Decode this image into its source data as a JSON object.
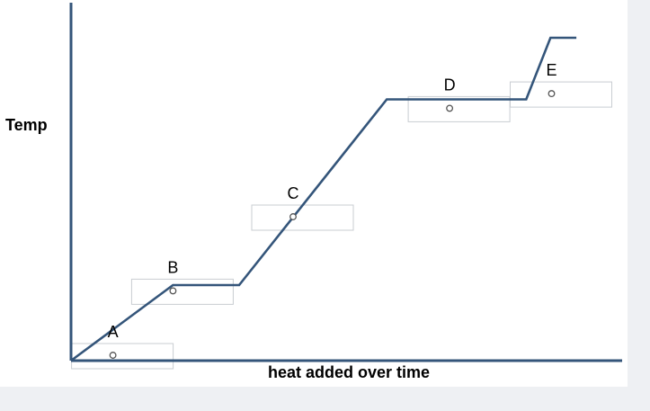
{
  "chart_data": {
    "type": "line",
    "title": "",
    "xlabel": "heat added over time",
    "ylabel": "Temp",
    "xlim": [
      0,
      100
    ],
    "ylim": [
      0,
      100
    ],
    "grid": false,
    "series": [
      {
        "values_x": [
          0,
          18.5,
          30.5,
          57.3,
          82.6,
          87,
          91.7
        ],
        "values_y": [
          0,
          21.1,
          21.1,
          73.0,
          73.0,
          90.2,
          90.2
        ]
      }
    ],
    "line_color": "#34557a",
    "points": [
      {
        "label": "A",
        "x": 7.6,
        "y": 1.5
      },
      {
        "label": "B",
        "x": 18.5,
        "y": 19.5
      },
      {
        "label": "C",
        "x": 40.3,
        "y": 40.2
      },
      {
        "label": "D",
        "x": 68.7,
        "y": 70.5
      },
      {
        "label": "E",
        "x": 87.2,
        "y": 74.6
      }
    ]
  }
}
